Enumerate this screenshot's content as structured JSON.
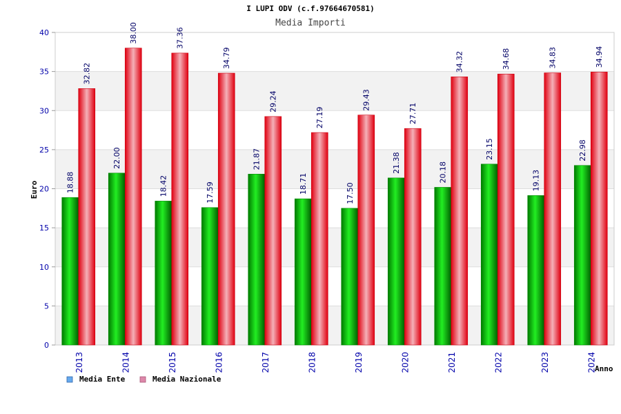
{
  "title": "I LUPI ODV (c.f.97664670581)",
  "chart_data": {
    "type": "bar",
    "title": "Media Importi",
    "xlabel": "Anno",
    "ylabel": "Euro",
    "ylim": [
      0,
      40
    ],
    "yticks": [
      0,
      5,
      10,
      15,
      20,
      25,
      30,
      35,
      40
    ],
    "categories": [
      "2013",
      "2014",
      "2015",
      "2016",
      "2017",
      "2018",
      "2019",
      "2020",
      "2021",
      "2022",
      "2023",
      "2024"
    ],
    "series": [
      {
        "name": "Media Ente",
        "values": [
          18.88,
          22.0,
          18.42,
          17.59,
          21.87,
          18.71,
          17.5,
          21.38,
          20.18,
          23.15,
          19.13,
          22.98
        ],
        "labels": [
          "18.88",
          "22.00",
          "18.42",
          "17.59",
          "21.87",
          "18.71",
          "17.50",
          "21.38",
          "20.18",
          "23.15",
          "19.13",
          "22.98"
        ]
      },
      {
        "name": "Media Nazionale",
        "values": [
          32.82,
          38.0,
          37.36,
          34.79,
          29.24,
          27.19,
          29.43,
          27.71,
          34.32,
          34.68,
          34.83,
          34.94
        ],
        "labels": [
          "32.82",
          "38.00",
          "37.36",
          "34.79",
          "29.24",
          "27.19",
          "29.43",
          "27.71",
          "34.32",
          "34.68",
          "34.83",
          "34.94"
        ]
      }
    ],
    "grid": true,
    "legend_position": "bottom-left",
    "colors": {
      "ente": "#00bb00",
      "ente_dark": "#006600",
      "nazionale": "#ee1122",
      "nazionale_light": "#f0a0a8",
      "legend_ente": "#66aaee",
      "legend_nazionale": "#dd88aa",
      "band": "#f2f2f2",
      "tick_text": "#0000aa"
    }
  }
}
